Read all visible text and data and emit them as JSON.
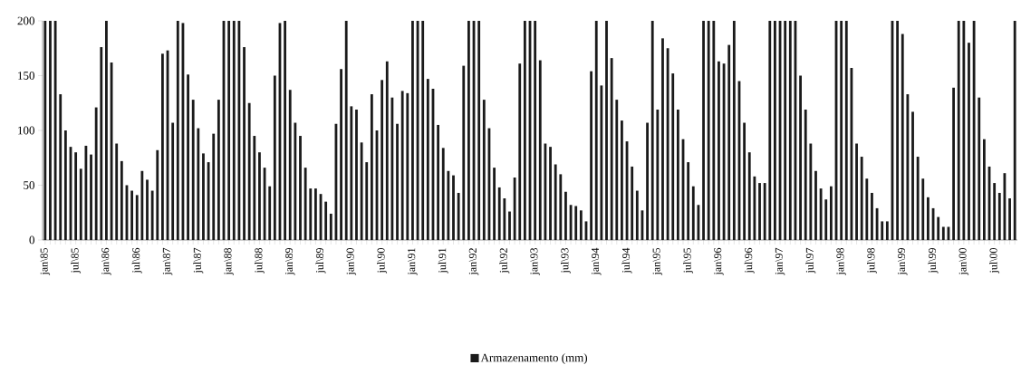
{
  "chart_data": {
    "type": "bar",
    "categories": [
      "jan\\85",
      null,
      null,
      null,
      null,
      null,
      "jul\\85",
      null,
      null,
      null,
      null,
      null,
      "jan\\86",
      null,
      null,
      null,
      null,
      null,
      "jul\\86",
      null,
      null,
      null,
      null,
      null,
      "jan\\87",
      null,
      null,
      null,
      null,
      null,
      "jul\\87",
      null,
      null,
      null,
      null,
      null,
      "jan\\88",
      null,
      null,
      null,
      null,
      null,
      "jul\\88",
      null,
      null,
      null,
      null,
      null,
      "jan\\89",
      null,
      null,
      null,
      null,
      null,
      "jul\\89",
      null,
      null,
      null,
      null,
      null,
      "jan\\90",
      null,
      null,
      null,
      null,
      null,
      "jul\\90",
      null,
      null,
      null,
      null,
      null,
      "jan\\91",
      null,
      null,
      null,
      null,
      null,
      "jul\\91",
      null,
      null,
      null,
      null,
      null,
      "jan\\92",
      null,
      null,
      null,
      null,
      null,
      "jul\\92",
      null,
      null,
      null,
      null,
      null,
      "jan\\93",
      null,
      null,
      null,
      null,
      null,
      "jul\\93",
      null,
      null,
      null,
      null,
      null,
      "jan\\94",
      null,
      null,
      null,
      null,
      null,
      "jul\\94",
      null,
      null,
      null,
      null,
      null,
      "jan\\95",
      null,
      null,
      null,
      null,
      null,
      "jul\\95",
      null,
      null,
      null,
      null,
      null,
      "jan\\96",
      null,
      null,
      null,
      null,
      null,
      "jul\\96",
      null,
      null,
      null,
      null,
      null,
      "jan\\97",
      null,
      null,
      null,
      null,
      null,
      "jul\\97",
      null,
      null,
      null,
      null,
      null,
      "jan\\98",
      null,
      null,
      null,
      null,
      null,
      "jul\\98",
      null,
      null,
      null,
      null,
      null,
      "jan\\99",
      null,
      null,
      null,
      null,
      null,
      "jul\\99",
      null,
      null,
      null,
      null,
      null,
      "jan\\00",
      null,
      null,
      null,
      null,
      null,
      "jul\\00",
      null,
      null,
      null,
      null
    ],
    "series": [
      {
        "name": "Armazenamento (mm)",
        "color": "#1a1a1a",
        "values": [
          200,
          200,
          200,
          133,
          100,
          85,
          80,
          65,
          86,
          78,
          121,
          176,
          200,
          162,
          88,
          72,
          50,
          45,
          41,
          63,
          55,
          45,
          82,
          170,
          173,
          107,
          200,
          198,
          151,
          128,
          102,
          79,
          71,
          97,
          128,
          200,
          200,
          200,
          200,
          176,
          125,
          95,
          80,
          66,
          49,
          150,
          198,
          200,
          137,
          107,
          95,
          66,
          47,
          47,
          42,
          35,
          24,
          106,
          156,
          200,
          122,
          119,
          89,
          71,
          133,
          100,
          146,
          163,
          130,
          106,
          136,
          134,
          200,
          200,
          200,
          147,
          138,
          105,
          84,
          63,
          59,
          43,
          159,
          200,
          200,
          200,
          128,
          102,
          66,
          48,
          38,
          26,
          57,
          161,
          200,
          200,
          200,
          164,
          88,
          85,
          69,
          60,
          44,
          32,
          31,
          27,
          17,
          154,
          200,
          141,
          200,
          166,
          128,
          109,
          90,
          67,
          45,
          27,
          107,
          200,
          119,
          184,
          175,
          152,
          119,
          92,
          71,
          49,
          32,
          200,
          200,
          200,
          163,
          161,
          178,
          200,
          145,
          107,
          80,
          58,
          52,
          52,
          200,
          200,
          200,
          200,
          200,
          200,
          150,
          119,
          88,
          63,
          47,
          37,
          49,
          200,
          200,
          200,
          157,
          88,
          76,
          56,
          43,
          29,
          17,
          17,
          200,
          200,
          188,
          133,
          117,
          76,
          56,
          39,
          29,
          21,
          12,
          12,
          139,
          200,
          200,
          180,
          200,
          130,
          92,
          67,
          52,
          43,
          61,
          38,
          200
        ]
      }
    ],
    "ylim": [
      0,
      200
    ],
    "yticks": [
      0,
      50,
      100,
      150,
      200
    ],
    "legend": "bottom"
  }
}
